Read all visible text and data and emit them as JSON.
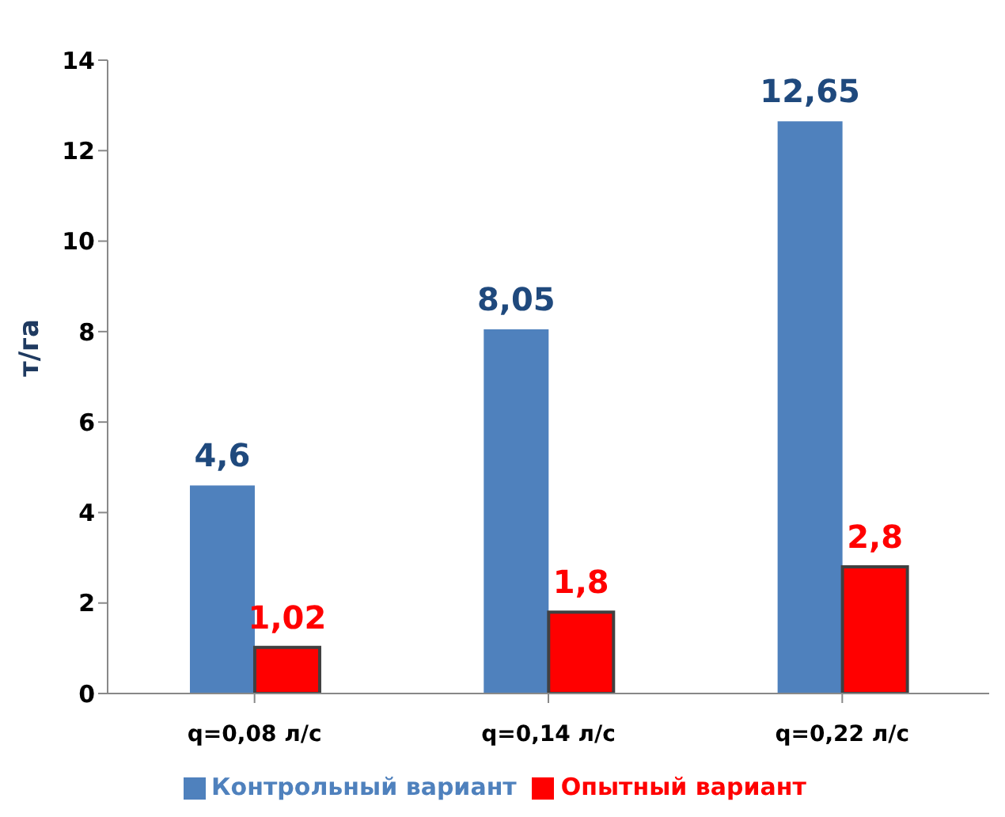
{
  "chart_data": {
    "type": "bar",
    "ylabel": "т/га",
    "categories": [
      "q=0,08 л/с",
      "q=0,14 л/с",
      "q=0,22 л/с"
    ],
    "series": [
      {
        "name": "Контрольный вариант",
        "color": "#4f81bd",
        "values": [
          4.6,
          8.05,
          12.65
        ],
        "value_labels": [
          "4,6",
          "8,05",
          "12,65"
        ]
      },
      {
        "name": "Опытный вариант",
        "color": "#ff0000",
        "values": [
          1.02,
          1.8,
          2.8
        ],
        "value_labels": [
          "1,02",
          "1,8",
          "2,8"
        ]
      }
    ],
    "ylim": [
      0,
      14
    ],
    "yticks": [
      0,
      2,
      4,
      6,
      8,
      10,
      12,
      14
    ],
    "legend": "bottom"
  }
}
